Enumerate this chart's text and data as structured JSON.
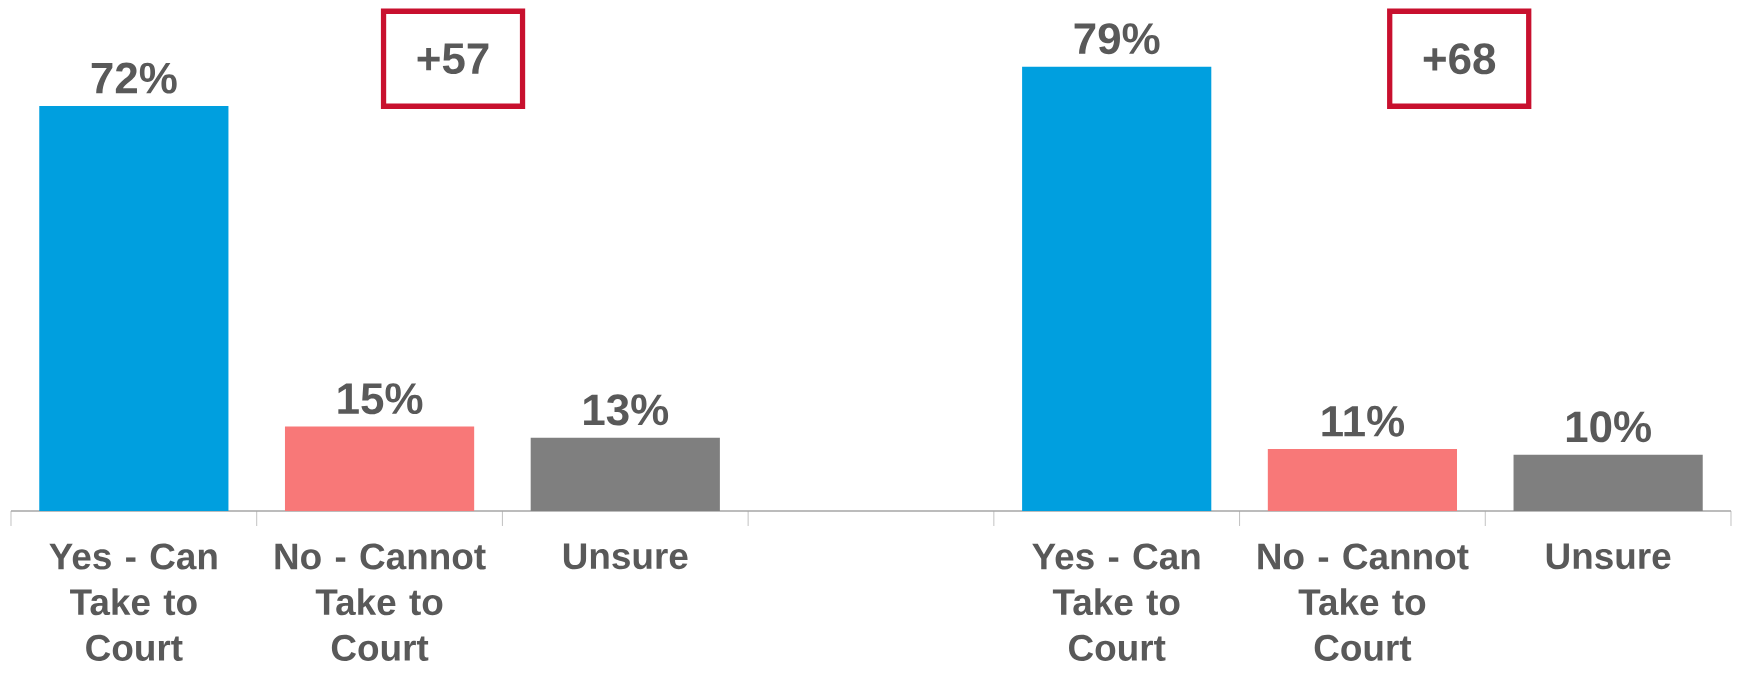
{
  "chart_data": {
    "type": "bar",
    "categories": [
      "Yes - Can Take to Court",
      "No - Cannot Take to Court",
      "Unsure",
      null,
      "Yes - Can Take to Court",
      "No - Cannot Take to Court",
      "Unsure"
    ],
    "values": [
      72,
      15,
      13,
      null,
      79,
      11,
      10
    ],
    "value_labels": [
      "72%",
      "15%",
      "13%",
      null,
      "79%",
      "11%",
      "10%"
    ],
    "colors": [
      "#009fdf",
      "#f87878",
      "#7f7f7f",
      null,
      "#009fdf",
      "#f87878",
      "#7f7f7f"
    ],
    "annotations": [
      "+57",
      "+68"
    ]
  }
}
